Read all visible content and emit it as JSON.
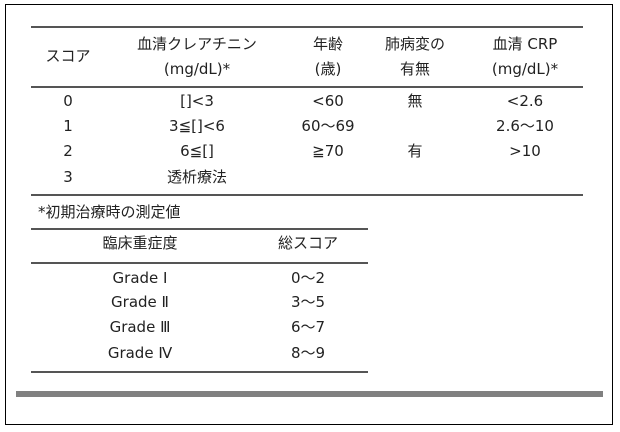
{
  "score_table": {
    "headers": [
      [
        "スコア",
        ""
      ],
      [
        "血清クレアチニン",
        "(mg/dL)*"
      ],
      [
        "年齢",
        "(歳)"
      ],
      [
        "肺病変の",
        "有無"
      ],
      [
        "血清 CRP",
        "(mg/dL)*"
      ]
    ],
    "rows": [
      [
        "0",
        "[]<3",
        "<60",
        "無",
        "<2.6"
      ],
      [
        "1",
        "3≦[]<6",
        "60〜69",
        "",
        "2.6〜10"
      ],
      [
        "2",
        "6≦[]",
        "≧70",
        "有",
        ">10"
      ],
      [
        "3",
        "透析療法",
        "",
        "",
        ""
      ]
    ],
    "footnote": "*初期治療時の測定値"
  },
  "grade_table": {
    "headers": [
      "臨床重症度",
      "総スコア"
    ],
    "rows": [
      [
        "Grade Ⅰ",
        "0〜2"
      ],
      [
        "Grade Ⅱ",
        "3〜5"
      ],
      [
        "Grade Ⅲ",
        "6〜7"
      ],
      [
        "Grade Ⅳ",
        "8〜9"
      ]
    ]
  }
}
